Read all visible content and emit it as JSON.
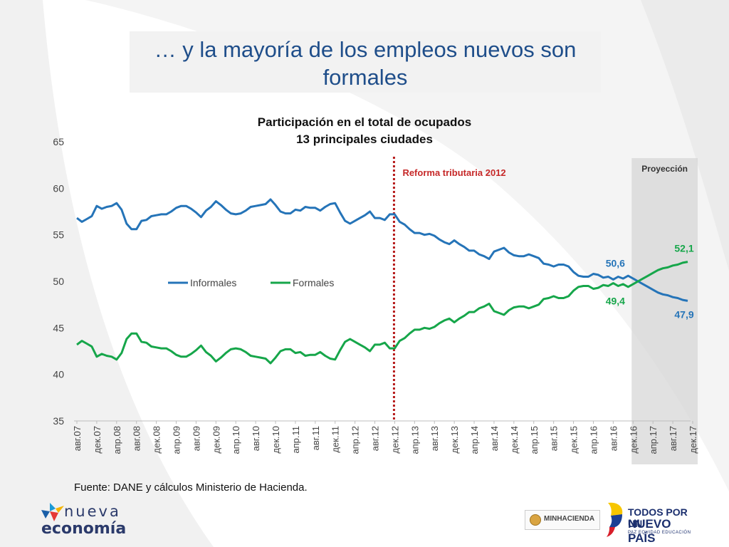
{
  "title": "… y la mayoría de los empleos nuevos son formales",
  "source": "Fuente: DANE y cálculos Ministerio de Hacienda.",
  "logos": {
    "nueva_line1": "nueva",
    "nueva_line2": "economía",
    "minhacienda": "MINHACIENDA",
    "todos_line1": "TODOS POR UN",
    "todos_line2": "NUEVO PAÍS",
    "todos_line3": "PAZ  EQUIDAD  EDUCACIÓN"
  },
  "colors": {
    "title": "#1f4e8a",
    "informales": "#2574b8",
    "formales": "#16a64a",
    "reform_line": "#b71c1c",
    "projection_band": "#d4d4d4"
  },
  "chart_data": {
    "type": "line",
    "title": "Participación en el total de ocupados",
    "subtitle": "13 principales ciudades",
    "ylim": [
      35,
      65
    ],
    "yticks": [
      35,
      40,
      45,
      50,
      55,
      60,
      65
    ],
    "grid": false,
    "legend_position": "inside-middle-left",
    "x_labels": [
      "авг.07",
      "дек.07",
      "апр.08",
      "авг.08",
      "дек.08",
      "апр.09",
      "авг.09",
      "дек.09",
      "апр.10",
      "авг.10",
      "дек.10",
      "апр.11",
      "авг.11",
      "дек.11",
      "апр.12",
      "авг.12",
      "дек.12",
      "апр.13",
      "авг.13",
      "дек.13",
      "апр.14",
      "авг.14",
      "дек.14",
      "апр.15",
      "авг.15",
      "дек.15",
      "апр.16",
      "авг.16",
      "дек.16",
      "апр.17",
      "авг.17",
      "дек.17"
    ],
    "series": [
      {
        "name": "Informales",
        "color": "#2574b8",
        "values": [
          56.8,
          56.4,
          56.7,
          57.0,
          58.1,
          57.8,
          58.0,
          58.1,
          58.4,
          57.7,
          56.2,
          55.6,
          55.6,
          56.5,
          56.6,
          57.0,
          57.1,
          57.2,
          57.2,
          57.5,
          57.9,
          58.1,
          58.1,
          57.8,
          57.4,
          56.9,
          57.6,
          58.0,
          58.6,
          58.2,
          57.7,
          57.3,
          57.2,
          57.3,
          57.6,
          58.0,
          58.1,
          58.2,
          58.3,
          58.8,
          58.2,
          57.5,
          57.3,
          57.3,
          57.7,
          57.6,
          58.0,
          57.9,
          57.9,
          57.6,
          58.0,
          58.3,
          58.4,
          57.4,
          56.5,
          56.2,
          56.5,
          56.8,
          57.1,
          57.5,
          56.8,
          56.8,
          56.6,
          57.2,
          57.2,
          56.4,
          56.1,
          55.6,
          55.2,
          55.2,
          55.0,
          55.1,
          54.9,
          54.5,
          54.2,
          54.0,
          54.4,
          54.0,
          53.7,
          53.3,
          53.3,
          52.9,
          52.7,
          52.4,
          53.2,
          53.4,
          53.6,
          53.1,
          52.8,
          52.7,
          52.7,
          52.9,
          52.7,
          52.5,
          51.9,
          51.8,
          51.6,
          51.8,
          51.8,
          51.6,
          51.0,
          50.6,
          50.5,
          50.5,
          50.8,
          50.7,
          50.4,
          50.5,
          50.2,
          50.5,
          50.3,
          50.6,
          50.3,
          50.0,
          49.7,
          49.4,
          49.1,
          48.8,
          48.6,
          48.5,
          48.3,
          48.2,
          48.0,
          47.9
        ],
        "end_label": "47,9",
        "marked_label": "50,6"
      },
      {
        "name": "Formales",
        "color": "#16a64a",
        "values": [
          43.2,
          43.6,
          43.3,
          43.0,
          41.9,
          42.2,
          42.0,
          41.9,
          41.6,
          42.3,
          43.8,
          44.4,
          44.4,
          43.5,
          43.4,
          43.0,
          42.9,
          42.8,
          42.8,
          42.5,
          42.1,
          41.9,
          41.9,
          42.2,
          42.6,
          43.1,
          42.4,
          42.0,
          41.4,
          41.8,
          42.3,
          42.7,
          42.8,
          42.7,
          42.4,
          42.0,
          41.9,
          41.8,
          41.7,
          41.2,
          41.8,
          42.5,
          42.7,
          42.7,
          42.3,
          42.4,
          42.0,
          42.1,
          42.1,
          42.4,
          42.0,
          41.7,
          41.6,
          42.6,
          43.5,
          43.8,
          43.5,
          43.2,
          42.9,
          42.5,
          43.2,
          43.2,
          43.4,
          42.8,
          42.8,
          43.6,
          43.9,
          44.4,
          44.8,
          44.8,
          45.0,
          44.9,
          45.1,
          45.5,
          45.8,
          46.0,
          45.6,
          46.0,
          46.3,
          46.7,
          46.7,
          47.1,
          47.3,
          47.6,
          46.8,
          46.6,
          46.4,
          46.9,
          47.2,
          47.3,
          47.3,
          47.1,
          47.3,
          47.5,
          48.1,
          48.2,
          48.4,
          48.2,
          48.2,
          48.4,
          49.0,
          49.4,
          49.5,
          49.5,
          49.2,
          49.3,
          49.6,
          49.5,
          49.8,
          49.5,
          49.7,
          49.4,
          49.7,
          50.0,
          50.3,
          50.6,
          50.9,
          51.2,
          51.4,
          51.5,
          51.7,
          51.8,
          52.0,
          52.1
        ],
        "end_label": "52,1",
        "marked_label": "49,4"
      }
    ],
    "annotations": {
      "reform_label": "Reforma tributaria 2012",
      "reform_at": "дек.12",
      "projection_label": "Proyección",
      "projection_from": "дек.16",
      "projection_to": "дек.17"
    }
  }
}
